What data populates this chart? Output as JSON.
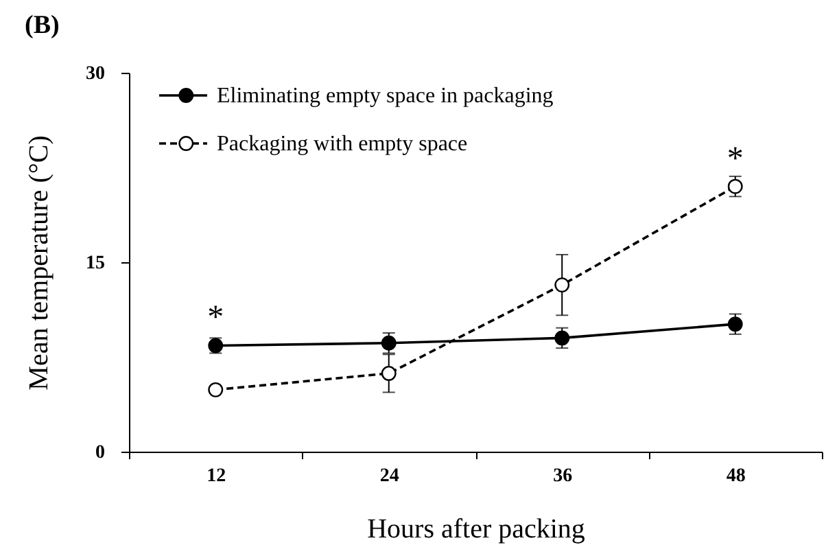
{
  "chart_data": {
    "type": "line",
    "title": "(B)",
    "xlabel": "Hours after packing",
    "ylabel": "Mean temperature (°C)",
    "categories": [
      "12",
      "24",
      "36",
      "48"
    ],
    "series": [
      {
        "name": "Eliminating empty space in packaging",
        "color": "#000000",
        "values": [
          8.4,
          8.6,
          9.0,
          10.1
        ],
        "errors": [
          0.6,
          0.8,
          0.8,
          0.8
        ],
        "line_style": "solid",
        "marker": "circle"
      },
      {
        "name": "Packaging with empty space",
        "color": "#000000",
        "values": [
          4.9,
          6.2,
          13.2,
          21.0
        ],
        "errors": [
          0.2,
          1.5,
          2.4,
          0.8
        ],
        "line_style": "dashed",
        "marker": "circle-open"
      }
    ],
    "ylim": [
      0,
      30
    ],
    "yticks": [
      0,
      15,
      30
    ],
    "grid": false,
    "legend": "top left",
    "annotations": [
      {
        "text": "*",
        "x": "12",
        "y": 8.4
      },
      {
        "text": "*",
        "x": "48",
        "y": 21.0
      }
    ]
  }
}
